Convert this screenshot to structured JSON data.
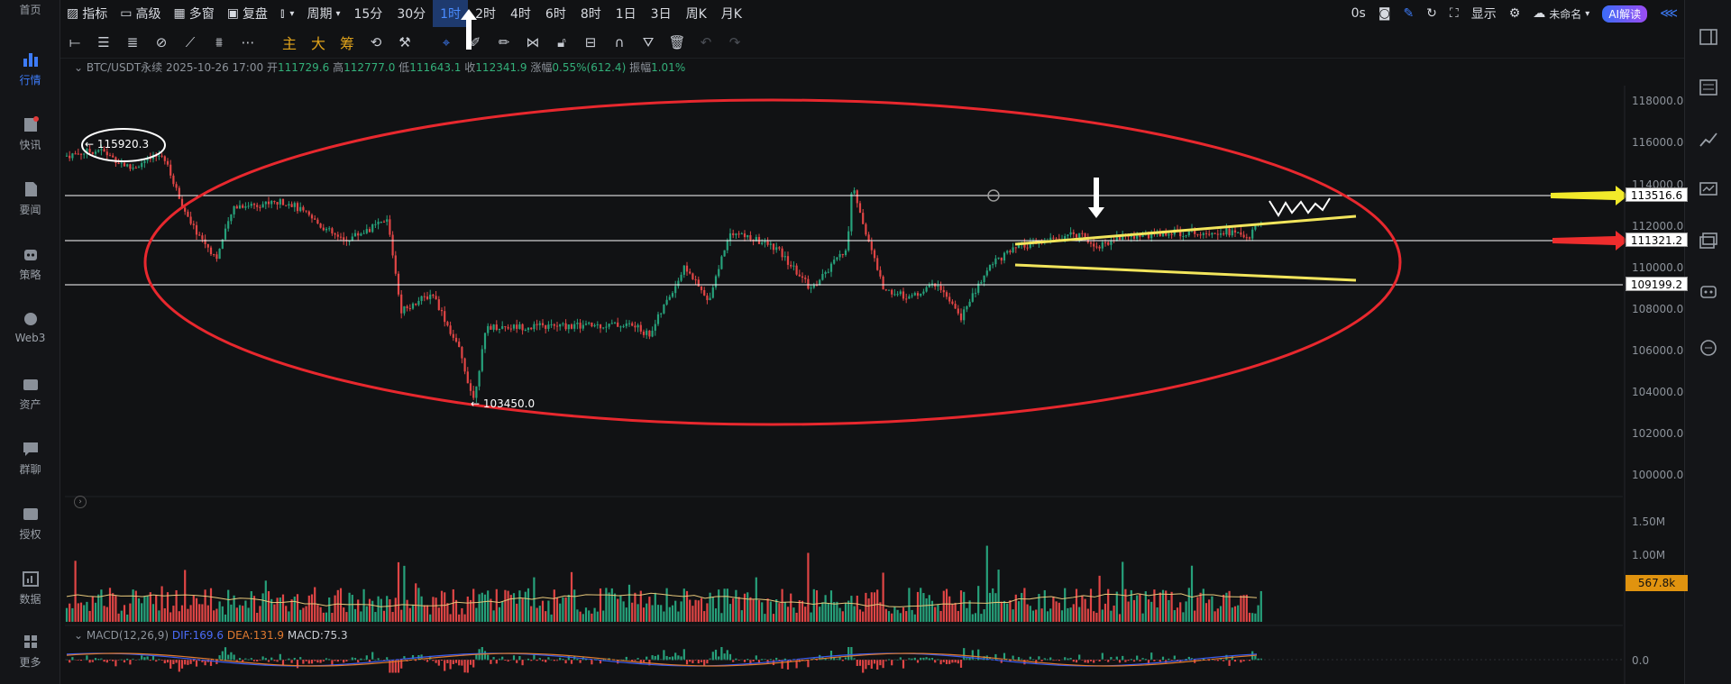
{
  "left_nav": [
    {
      "label": "首页",
      "icon": "home-icon"
    },
    {
      "label": "行情",
      "icon": "market-chart-icon",
      "active": true
    },
    {
      "label": "快讯",
      "icon": "news-icon"
    },
    {
      "label": "要闻",
      "icon": "document-icon"
    },
    {
      "label": "策略",
      "icon": "robot-icon"
    },
    {
      "label": "Web3",
      "icon": "web3-icon"
    },
    {
      "label": "资产",
      "icon": "wallet-icon"
    },
    {
      "label": "群聊",
      "icon": "chat-icon"
    },
    {
      "label": "授权",
      "icon": "key-icon"
    },
    {
      "label": "数据",
      "icon": "data-icon"
    },
    {
      "label": "更多",
      "icon": "grid-icon"
    }
  ],
  "topbar": {
    "indicators": "指标",
    "advanced": "高级",
    "multi_window": "多窗",
    "replay": "复盘",
    "period_label": "周期",
    "periods": [
      "15分",
      "30分",
      "1时",
      "2时",
      "4时",
      "6时",
      "8时",
      "1日",
      "3日",
      "周K",
      "月K"
    ],
    "active_period": "1时",
    "timer": "0s",
    "display": "显示",
    "unnamed": "未命名",
    "ai": "AI解读"
  },
  "info": {
    "symbol": "BTC/USDT永续",
    "time": "2025-10-26 17:00",
    "open_label": "开",
    "open": "111729.6",
    "high_label": "高",
    "high": "112777.0",
    "low_label": "低",
    "low": "111643.1",
    "close_label": "收",
    "close": "112341.9",
    "change_label": "涨幅",
    "change": "0.55%(612.4)",
    "amp_label": "振幅",
    "amp": "1.01%"
  },
  "price_axis": [
    "118000.0",
    "116000.0",
    "114000.0",
    "112000.0",
    "110000.0",
    "108000.0",
    "106000.0",
    "104000.0",
    "102000.0",
    "100000.0"
  ],
  "levels": [
    "113516.6",
    "111321.2",
    "109199.2"
  ],
  "annotations": {
    "high": "← 115920.3",
    "low": "← 103450.0"
  },
  "volume_axis": [
    "1.50M",
    "1.00M"
  ],
  "volume_current": "567.8k",
  "macd": {
    "title": "MACD(12,26,9)",
    "dif": "DIF:169.6",
    "dea": "DEA:131.9",
    "macd": "MACD:75.3",
    "zero": "0.0"
  },
  "colors": {
    "up": "#26a17b",
    "down": "#e04545",
    "ellipse": "#e8282e",
    "channel": "#f2e55c",
    "arrow_yellow": "#f2ea2a",
    "arrow_red": "#ee2d2d",
    "active_nav": "#3d7bf7"
  }
}
